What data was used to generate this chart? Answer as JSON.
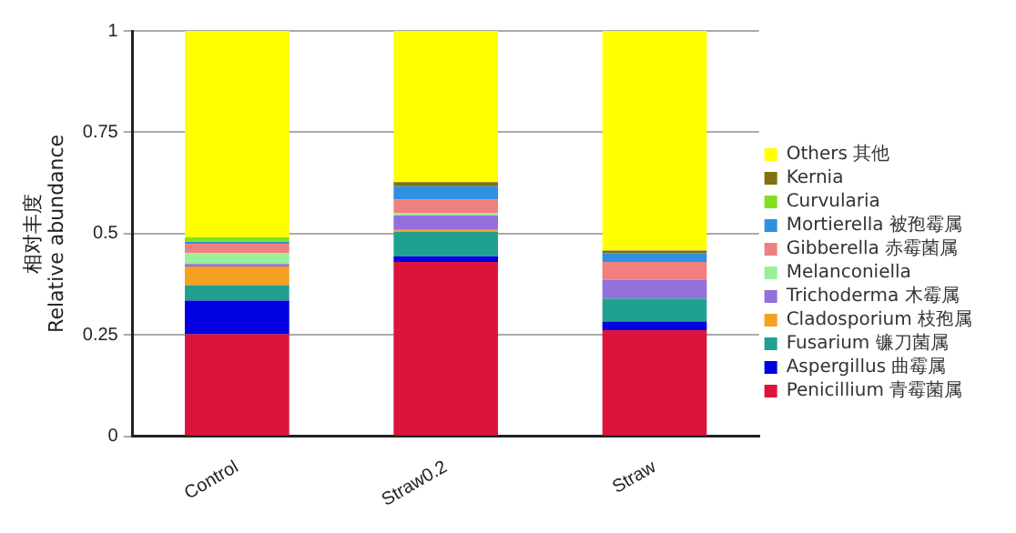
{
  "chart_data": {
    "type": "bar",
    "stacked": true,
    "ylabel": "相对丰度\nRelative abundance",
    "categories": [
      "Control",
      "Straw0.2",
      "Straw"
    ],
    "ylim": [
      0,
      1
    ],
    "yticks": [
      0,
      0.25,
      0.5,
      0.75,
      1
    ],
    "grid": "y",
    "legend": "right",
    "series": [
      {
        "name": "Penicillium 青霉菌属",
        "color": "#dc143c",
        "values": [
          0.252,
          0.43,
          0.262
        ]
      },
      {
        "name": "Aspergillus 曲霉属",
        "color": "#0000e0",
        "values": [
          0.083,
          0.014,
          0.021
        ]
      },
      {
        "name": "Fusarium 镰刀菌属",
        "color": "#20a090",
        "values": [
          0.038,
          0.06,
          0.057
        ]
      },
      {
        "name": "Cladosporium 枝孢属",
        "color": "#f5a020",
        "values": [
          0.046,
          0.005,
          0
        ]
      },
      {
        "name": "Trichoderma 木霉属",
        "color": "#9370db",
        "values": [
          0.006,
          0.036,
          0.046
        ]
      },
      {
        "name": "Melanconiella",
        "color": "#98f098",
        "values": [
          0.027,
          0.005,
          0
        ]
      },
      {
        "name": "Gibberella 赤霉菌属",
        "color": "#f08080",
        "values": [
          0.023,
          0.034,
          0.044
        ]
      },
      {
        "name": "Mortierella 被孢霉属",
        "color": "#3090e0",
        "values": [
          0.005,
          0.033,
          0.022
        ]
      },
      {
        "name": "Curvularia",
        "color": "#80e020",
        "values": [
          0.011,
          0,
          0
        ]
      },
      {
        "name": "Kernia",
        "color": "#807010",
        "values": [
          0,
          0.01,
          0.006
        ]
      },
      {
        "name": "Others 其他",
        "color": "#ffff00",
        "values": [
          0.509,
          0.373,
          0.542
        ]
      }
    ]
  }
}
